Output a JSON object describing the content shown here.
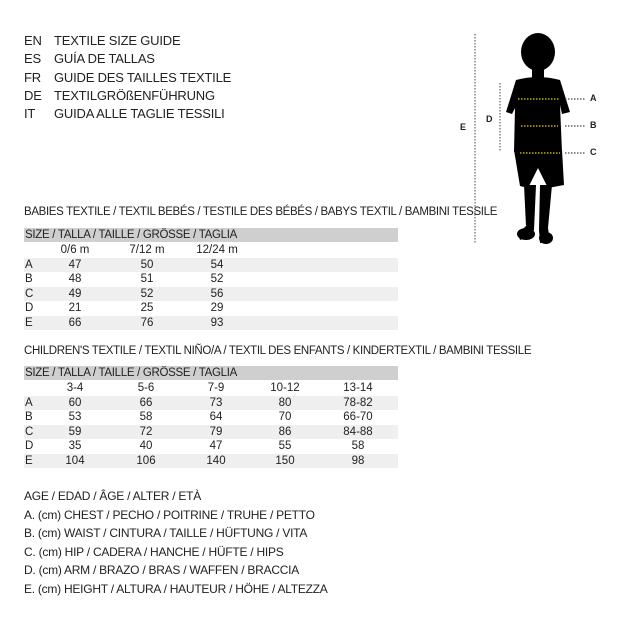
{
  "languages": [
    {
      "code": "EN",
      "text": "TEXTILE SIZE GUIDE"
    },
    {
      "code": "ES",
      "text": "GUÍA DE TALLAS"
    },
    {
      "code": "FR",
      "text": "GUIDE DES TAILLES TEXTILE"
    },
    {
      "code": "DE",
      "text": "TEXTILGRÖßENFÜHRUNG"
    },
    {
      "code": "IT",
      "text": "GUIDA ALLE TAGLIE TESSILI"
    }
  ],
  "figure": {
    "labels": {
      "a": "A",
      "b": "B",
      "c": "C",
      "d": "D",
      "e": "E"
    },
    "line_color": "#e8d000"
  },
  "babies": {
    "title": "BABIES TEXTILE / TEXTIL BEBÉS / TESTILE DES BÉBÉS / BABYS TEXTIL / BAMBINI TESSILE",
    "size_header": "SIZE / TALLA / TAILLE / GRÖSSE / TAGLIA",
    "columns": [
      "0/6 m",
      "7/12 m",
      "12/24 m"
    ],
    "rows": [
      {
        "label": "A",
        "values": [
          "47",
          "50",
          "54"
        ]
      },
      {
        "label": "B",
        "values": [
          "48",
          "51",
          "52"
        ]
      },
      {
        "label": "C",
        "values": [
          "49",
          "52",
          "56"
        ]
      },
      {
        "label": "D",
        "values": [
          "21",
          "25",
          "29"
        ]
      },
      {
        "label": "E",
        "values": [
          "66",
          "76",
          "93"
        ]
      }
    ]
  },
  "children": {
    "title": "CHILDREN'S TEXTILE / TEXTIL NIÑO/A / TEXTIL DES ENFANTS / KINDERTEXTIL / BAMBINI TESSILE",
    "size_header": "SIZE / TALLA / TAILLE / GRÖSSE / TAGLIA",
    "columns": [
      "3-4",
      "5-6",
      "7-9",
      "10-12",
      "13-14"
    ],
    "rows": [
      {
        "label": "A",
        "values": [
          "60",
          "66",
          "73",
          "80",
          "78-82"
        ]
      },
      {
        "label": "B",
        "values": [
          "53",
          "58",
          "64",
          "70",
          "66-70"
        ]
      },
      {
        "label": "C",
        "values": [
          "59",
          "72",
          "79",
          "86",
          "84-88"
        ]
      },
      {
        "label": "D",
        "values": [
          "35",
          "40",
          "47",
          "55",
          "58"
        ]
      },
      {
        "label": "E",
        "values": [
          "104",
          "106",
          "140",
          "150",
          "98"
        ]
      }
    ]
  },
  "legend": [
    "AGE / EDAD / ÂGE / ALTER / ETÀ",
    "A. (cm) CHEST / PECHO / POITRINE / TRUHE / PETTO",
    "B. (cm) WAIST / CINTURA / TAILLE / HÜFTUNG / VITA",
    "C. (cm) HIP / CADERA / HANCHE / HÜFTE / HIPS",
    "D. (cm) ARM / BRAZO / BRAS / WAFFEN / BRACCIA",
    "E. (cm) HEIGHT / ALTURA / HAUTEUR / HÖHE / ALTEZZA"
  ]
}
